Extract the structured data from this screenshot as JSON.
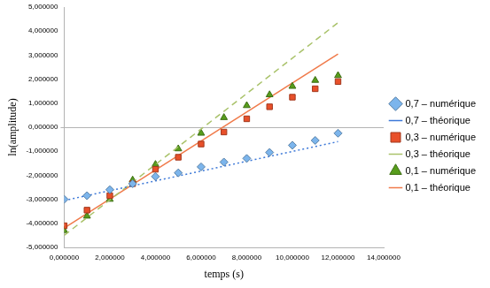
{
  "chart_data": {
    "type": "scatter",
    "x_label": "temps (s)",
    "y_label": "ln(amplitude)",
    "xlim": [
      0,
      14
    ],
    "xticks": [
      {
        "value": 0,
        "label": "0,000000"
      },
      {
        "value": 2,
        "label": "2,000000"
      },
      {
        "value": 4,
        "label": "4,000000"
      },
      {
        "value": 6,
        "label": "6,000000"
      },
      {
        "value": 8,
        "label": "8,000000"
      },
      {
        "value": 10,
        "label": "10,000000"
      },
      {
        "value": 12,
        "label": "12,000000"
      },
      {
        "value": 14,
        "label": "14,000000"
      }
    ],
    "ylim": [
      -5,
      5
    ],
    "yticks": [
      {
        "value": -5,
        "label": "-5,000000"
      },
      {
        "value": -4,
        "label": "-4,000000"
      },
      {
        "value": -3,
        "label": "-3,000000"
      },
      {
        "value": -2,
        "label": "-2,000000"
      },
      {
        "value": -1,
        "label": "-1,000000"
      },
      {
        "value": 0,
        "label": "0,000000"
      },
      {
        "value": 1,
        "label": "1,000000"
      },
      {
        "value": 2,
        "label": "2,000000"
      },
      {
        "value": 3,
        "label": "3,000000"
      },
      {
        "value": 4,
        "label": "4,000000"
      },
      {
        "value": 5,
        "label": "5,000000"
      }
    ],
    "grid": false,
    "legend": "right",
    "series": [
      {
        "name": "0,7 – numérique",
        "type": "scatter",
        "marker": "diamond",
        "color": "#7cb5ec",
        "x": [
          0,
          1,
          2,
          3,
          4,
          5,
          6,
          7,
          8,
          9,
          10,
          11,
          12
        ],
        "values": [
          -3.0,
          -2.85,
          -2.6,
          -2.35,
          -2.05,
          -1.9,
          -1.65,
          -1.45,
          -1.3,
          -1.05,
          -0.75,
          -0.55,
          -0.25
        ]
      },
      {
        "name": "0,7 – théorique",
        "type": "line",
        "line_style": "dotted",
        "color": "#3c78d8",
        "x": [
          0,
          12
        ],
        "values": [
          -3.05,
          -0.6
        ]
      },
      {
        "name": "0,3 – numérique",
        "type": "scatter",
        "marker": "square",
        "color": "#e8502a",
        "x": [
          0,
          1,
          2,
          3,
          4,
          5,
          6,
          7,
          8,
          9,
          10,
          11,
          12
        ],
        "values": [
          -4.1,
          -3.45,
          -2.85,
          -2.35,
          -1.75,
          -1.25,
          -0.7,
          -0.2,
          0.35,
          0.85,
          1.25,
          1.6,
          1.9
        ]
      },
      {
        "name": "0,3 – théorique",
        "type": "line",
        "line_style": "dashed",
        "color": "#a9c26a",
        "x": [
          0,
          12
        ],
        "values": [
          -4.5,
          4.35
        ]
      },
      {
        "name": "0,1 – numérique",
        "type": "scatter",
        "marker": "triangle",
        "color": "#579d1c",
        "x": [
          0,
          1,
          2,
          3,
          4,
          5,
          6,
          7,
          8,
          9,
          10,
          11,
          12
        ],
        "values": [
          -4.3,
          -3.7,
          -3.0,
          -2.2,
          -1.55,
          -0.9,
          -0.25,
          0.4,
          0.9,
          1.35,
          1.7,
          1.95,
          2.15
        ]
      },
      {
        "name": "0,1 – théorique",
        "type": "line",
        "line_style": "solid",
        "color": "#f07a4a",
        "x": [
          0,
          12
        ],
        "values": [
          -4.2,
          3.05
        ]
      }
    ]
  }
}
